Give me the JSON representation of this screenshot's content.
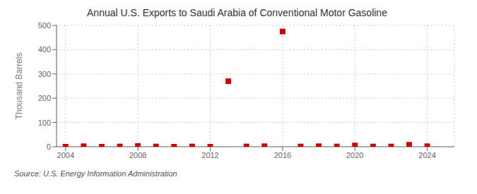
{
  "chart_data": {
    "type": "scatter",
    "title": "Annual U.S. Exports to Saudi Arabia of Conventional Motor Gasoline",
    "ylabel": "Thousand Barrels",
    "annotations": [
      "Source: U.S. Energy Information Administration"
    ],
    "x": [
      2004,
      2005,
      2006,
      2007,
      2008,
      2009,
      2010,
      2011,
      2012,
      2013,
      2014,
      2015,
      2016,
      2017,
      2018,
      2019,
      2020,
      2021,
      2022,
      2023,
      2024
    ],
    "values": [
      0,
      2,
      0,
      1,
      3,
      1,
      0,
      1,
      0,
      270,
      1,
      2,
      475,
      1,
      2,
      1,
      5,
      1,
      1,
      8,
      2
    ],
    "color": "#cc0000",
    "marker": "square",
    "xlim": [
      2003.5,
      2025.5
    ],
    "xticks": [
      2004,
      2008,
      2012,
      2016,
      2020,
      2024
    ],
    "ylim": [
      0,
      500
    ],
    "yticks": [
      0,
      100,
      200,
      300,
      400,
      500
    ],
    "grid": true
  }
}
